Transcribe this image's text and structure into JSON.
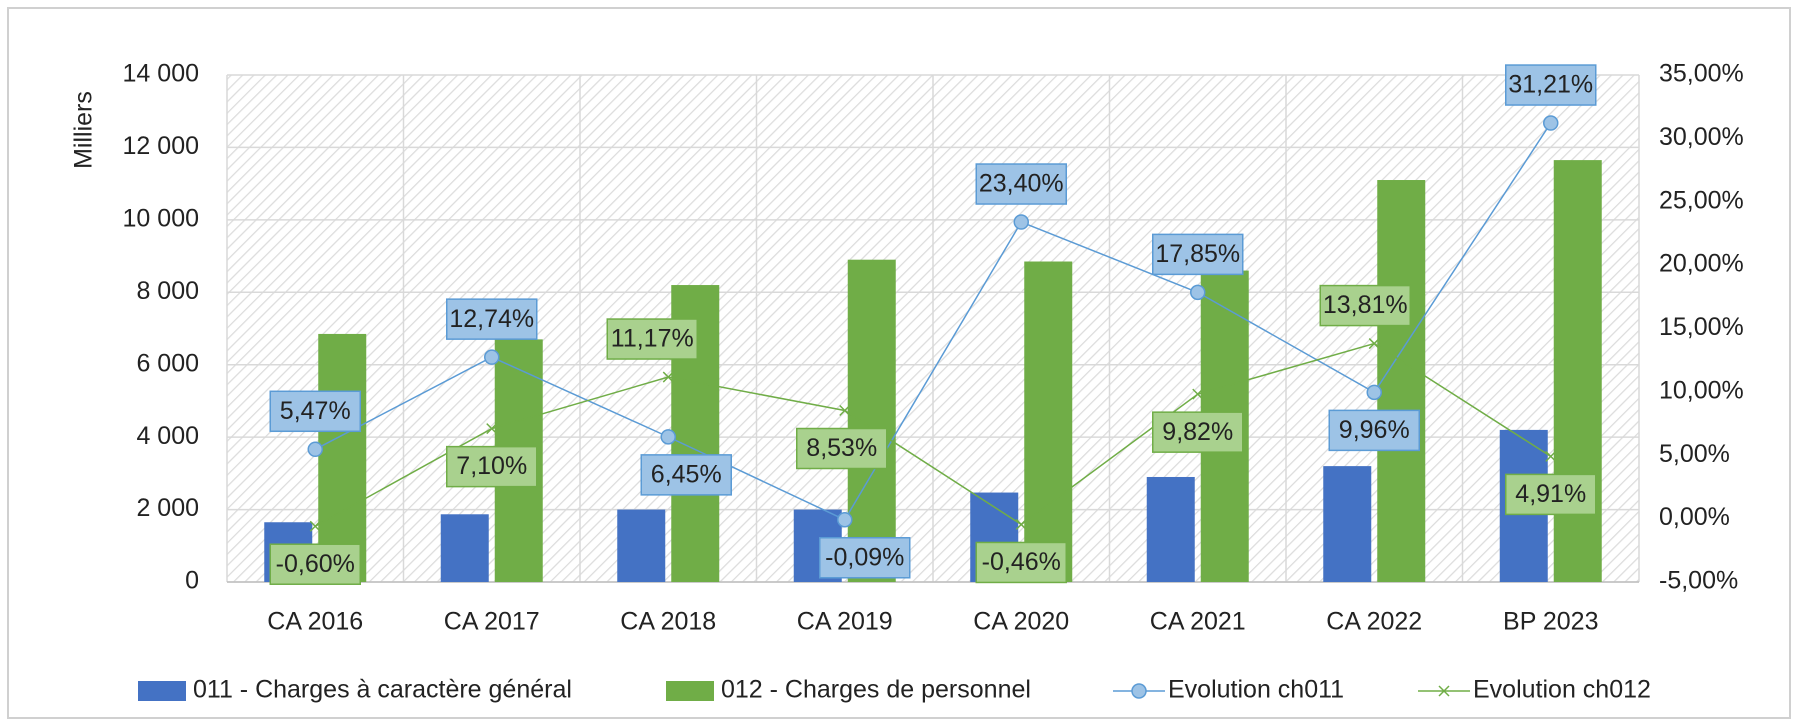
{
  "chart_data": {
    "type": "bar",
    "y_label": "Milliers",
    "categories": [
      "CA 2016",
      "CA 2017",
      "CA 2018",
      "CA 2019",
      "CA 2020",
      "CA 2021",
      "CA 2022",
      "BP 2023"
    ],
    "series": [
      {
        "name": "011 - Charges à caractère général",
        "type": "bar",
        "color": "#4472c4",
        "values": [
          1650,
          1870,
          2000,
          2000,
          2470,
          2900,
          3200,
          4200
        ]
      },
      {
        "name": "012 - Charges de personnel",
        "type": "bar",
        "color": "#70ad47",
        "values": [
          6850,
          6700,
          8200,
          8900,
          8850,
          8600,
          11100,
          11650
        ]
      },
      {
        "name": "Evolution ch011",
        "type": "line",
        "axis": "y2",
        "color": "#5b9bd5",
        "marker": "circle",
        "values": [
          5.47,
          12.74,
          6.45,
          -0.09,
          23.4,
          17.85,
          9.96,
          31.21
        ],
        "value_labels": [
          "5,47%",
          "12,74%",
          "6,45%",
          "-0,09%",
          "23,40%",
          "17,85%",
          "9,96%",
          "31,21%"
        ]
      },
      {
        "name": "Evolution ch012",
        "type": "line",
        "axis": "y2",
        "color": "#70ad47",
        "marker": "x",
        "values": [
          -0.6,
          7.1,
          11.17,
          8.53,
          -0.46,
          9.82,
          13.81,
          4.91
        ],
        "value_labels": [
          "-0,60%",
          "7,10%",
          "11,17%",
          "8,53%",
          "-0,46%",
          "9,82%",
          "13,81%",
          "4,91%"
        ]
      }
    ],
    "ylim": [
      0,
      14000
    ],
    "yticks": [
      0,
      {
        "value": 2000,
        "label": "2 000"
      },
      {
        "value": 4000,
        "label": "4 000"
      },
      {
        "value": 6000,
        "label": "6 000"
      },
      {
        "value": 8000,
        "label": "8 000"
      },
      {
        "value": 10000,
        "label": "10 000"
      },
      {
        "value": 12000,
        "label": "12 000"
      },
      {
        "value": 14000,
        "label": "14 000"
      }
    ],
    "y2lim": [
      -5,
      35
    ],
    "y2ticks": [
      {
        "value": -5,
        "label": "-5,00%"
      },
      {
        "value": 0,
        "label": "0,00%"
      },
      {
        "value": 5,
        "label": "5,00%"
      },
      {
        "value": 10,
        "label": "10,00%"
      },
      {
        "value": 15,
        "label": "15,00%"
      },
      {
        "value": 20,
        "label": "20,00%"
      },
      {
        "value": 25,
        "label": "25,00%"
      },
      {
        "value": 30,
        "label": "30,00%"
      },
      {
        "value": 35,
        "label": "35,00%"
      }
    ],
    "grid": true,
    "legend": "bottom"
  }
}
